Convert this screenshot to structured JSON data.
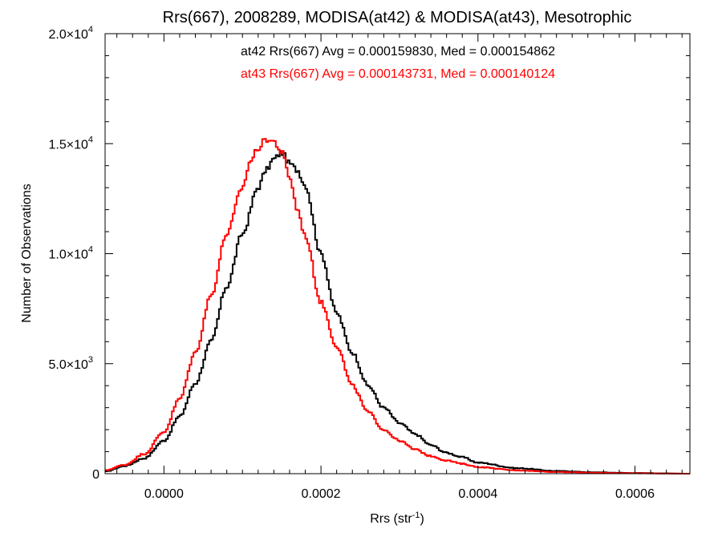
{
  "chart_data": {
    "type": "line",
    "title": "Rrs(667), 2008289, MODISA(at42) & MODISA(at43), Mesotrophic",
    "xlabel_main": "Rrs (str",
    "xlabel_sup": "-1",
    "xlabel_close": ")",
    "ylabel": "Number of Observations",
    "xlim": [
      -7.5e-05,
      0.00067
    ],
    "ylim": [
      0,
      20000
    ],
    "x_ticks": [
      {
        "value": 0.0,
        "label": "0.0000"
      },
      {
        "value": 0.0002,
        "label": "0.0002"
      },
      {
        "value": 0.0004,
        "label": "0.0004"
      },
      {
        "value": 0.0006,
        "label": "0.0006"
      }
    ],
    "y_ticks": [
      {
        "value": 0,
        "mant": "0",
        "exp": ""
      },
      {
        "value": 5000,
        "mant": "5.0×10",
        "exp": "3"
      },
      {
        "value": 10000,
        "mant": "1.0×10",
        "exp": "4"
      },
      {
        "value": 15000,
        "mant": "1.5×10",
        "exp": "4"
      },
      {
        "value": 20000,
        "mant": "2.0×10",
        "exp": "4"
      }
    ],
    "annotations": [
      {
        "text": "at42 Rrs(667) Avg = 0.000159830, Med = 0.000154862",
        "color": "#000000"
      },
      {
        "text": "at43 Rrs(667) Avg = 0.000143731, Med = 0.000140124",
        "color": "#ff0000"
      }
    ],
    "series": [
      {
        "color": "#000000",
        "x": [
          -7.5e-05,
          -5e-05,
          -2.5e-05,
          0.0,
          2e-05,
          4e-05,
          6e-05,
          8e-05,
          0.0001,
          0.00012,
          0.00013,
          0.00014,
          0.00015,
          0.00016,
          0.00017,
          0.00018,
          0.0002,
          0.00022,
          0.00024,
          0.00026,
          0.00028,
          0.0003,
          0.00032,
          0.00034,
          0.00036,
          0.00038,
          0.0004,
          0.00045,
          0.0005,
          0.00055,
          0.0006,
          0.00067
        ],
        "y": [
          100,
          350,
          700,
          1500,
          2600,
          4100,
          6000,
          8500,
          10900,
          13000,
          13800,
          14300,
          14600,
          14100,
          13800,
          13100,
          10000,
          7300,
          5500,
          4000,
          3000,
          2300,
          1800,
          1300,
          950,
          750,
          500,
          250,
          120,
          60,
          30,
          0
        ]
      },
      {
        "color": "#ff0000",
        "x": [
          -7.5e-05,
          -5e-05,
          -2.5e-05,
          0.0,
          2e-05,
          4e-05,
          6e-05,
          8e-05,
          0.0001,
          0.00011,
          0.00012,
          0.00013,
          0.00014,
          0.00015,
          0.00016,
          0.00017,
          0.00018,
          0.0002,
          0.00022,
          0.00024,
          0.00026,
          0.00028,
          0.0003,
          0.00032,
          0.00034,
          0.00036,
          0.00038,
          0.0004,
          0.00045,
          0.0005,
          0.00055,
          0.0006,
          0.00067
        ],
        "y": [
          150,
          400,
          900,
          1900,
          3400,
          5500,
          8100,
          10900,
          13000,
          14200,
          14800,
          15200,
          15100,
          14600,
          13500,
          12000,
          10800,
          7800,
          5800,
          4000,
          2800,
          2000,
          1500,
          1100,
          800,
          600,
          450,
          300,
          150,
          80,
          40,
          20,
          0
        ]
      }
    ]
  }
}
